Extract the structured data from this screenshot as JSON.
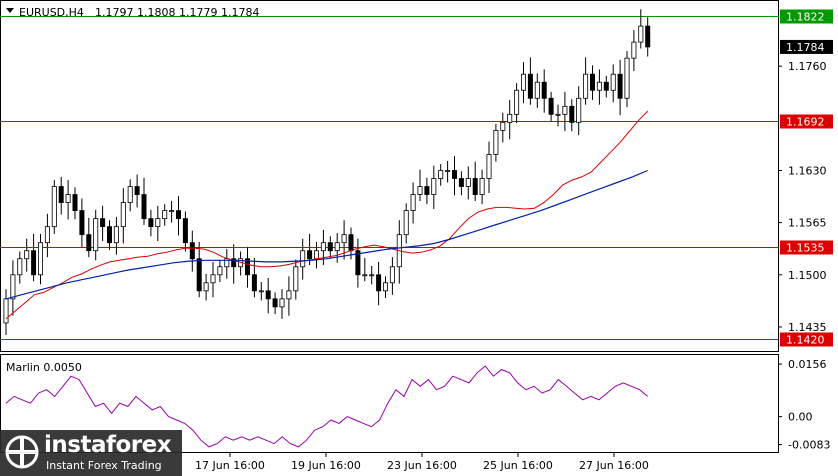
{
  "header": {
    "symbol": "EURUSD,H4",
    "ohlc": "1.1797 1.1808 1.1779 1.1784"
  },
  "indicator": {
    "label": "Marlin 0.0050"
  },
  "watermark": {
    "brand": "instaforex",
    "tagline": "Instant Forex Trading"
  },
  "colors": {
    "bull": "#ffffff",
    "bear": "#000000",
    "ma_red": "#dd0000",
    "ma_blue": "#0022aa",
    "osc": "#9900aa",
    "level_red": "#dd0000",
    "level_green": "#009900"
  },
  "chart_data": [
    {
      "type": "candlestick",
      "title": "EURUSD,H4",
      "ylim": [
        1.1405,
        1.184
      ],
      "x_tick_labels": [
        "17 Jun 16:00",
        "19 Jun 16:00",
        "23 Jun 16:00",
        "25 Jun 16:00",
        "27 Jun 16:00"
      ],
      "y_tick_labels": [
        "1.1760",
        "1.1630",
        "1.1565",
        "1.1500",
        "1.1435"
      ],
      "current_price": "1.1784",
      "levels": [
        {
          "value": 1.1822,
          "label": "1.1822",
          "color": "green"
        },
        {
          "value": 1.1692,
          "label": "1.1692",
          "color": "red"
        },
        {
          "value": 1.1535,
          "label": "1.1535",
          "color": "red"
        },
        {
          "value": 1.142,
          "label": "1.1420",
          "color": "red"
        }
      ],
      "close": [
        1.147,
        1.15,
        1.152,
        1.153,
        1.15,
        1.154,
        1.156,
        1.161,
        1.159,
        1.16,
        1.158,
        1.155,
        1.153,
        1.157,
        1.156,
        1.154,
        1.156,
        1.159,
        1.161,
        1.16,
        1.157,
        1.156,
        1.157,
        1.158,
        1.158,
        1.157,
        1.154,
        1.152,
        1.148,
        1.149,
        1.15,
        1.151,
        1.152,
        1.151,
        1.152,
        1.15,
        1.148,
        1.148,
        1.147,
        1.146,
        1.147,
        1.148,
        1.151,
        1.153,
        1.152,
        1.153,
        1.154,
        1.153,
        1.154,
        1.155,
        1.153,
        1.15,
        1.15,
        1.15,
        1.148,
        1.149,
        1.151,
        1.155,
        1.158,
        1.16,
        1.161,
        1.16,
        1.162,
        1.163,
        1.163,
        1.162,
        1.161,
        1.162,
        1.16,
        1.162,
        1.165,
        1.168,
        1.169,
        1.17,
        1.173,
        1.175,
        1.172,
        1.174,
        1.172,
        1.17,
        1.17,
        1.171,
        1.169,
        1.172,
        1.175,
        1.173,
        1.174,
        1.173,
        1.175,
        1.172,
        1.177,
        1.179,
        1.181,
        1.1784
      ],
      "series": [
        {
          "name": "",
          "role": "ma-fast",
          "values": [
            1.1445,
            1.1455,
            1.1465,
            1.1475,
            1.1478,
            1.1484,
            1.149,
            1.1497,
            1.1501,
            1.1507,
            1.1512,
            1.1516,
            1.1518,
            1.152,
            1.1522,
            1.1523,
            1.1526,
            1.1528,
            1.1531,
            1.1533,
            1.1533,
            1.1532,
            1.1528,
            1.1522,
            1.1518,
            1.1515,
            1.1512,
            1.151,
            1.151,
            1.1511,
            1.1513,
            1.1516,
            1.1518,
            1.152,
            1.1522,
            1.1524,
            1.1528,
            1.1532,
            1.1535,
            1.1537,
            1.1535,
            1.1532,
            1.1529,
            1.1527,
            1.1528,
            1.1531,
            1.1536,
            1.1545,
            1.1558,
            1.157,
            1.1578,
            1.1582,
            1.1584,
            1.1584,
            1.1583,
            1.1582,
            1.1583,
            1.159,
            1.16,
            1.1612,
            1.1618,
            1.1622,
            1.1628,
            1.164,
            1.1652,
            1.1664,
            1.1678,
            1.1692,
            1.1704
          ]
        },
        {
          "name": "",
          "role": "ma-slow",
          "values": [
            1.147,
            1.1475,
            1.148,
            1.1485,
            1.149,
            1.1494,
            1.1498,
            1.1502,
            1.1506,
            1.1509,
            1.1512,
            1.1515,
            1.1517,
            1.1518,
            1.1518,
            1.1518,
            1.1517,
            1.1516,
            1.1516,
            1.1517,
            1.1518,
            1.152,
            1.1523,
            1.1526,
            1.1529,
            1.1532,
            1.1534,
            1.1536,
            1.1539,
            1.1544,
            1.155,
            1.1556,
            1.1562,
            1.1568,
            1.1574,
            1.158,
            1.1587,
            1.1594,
            1.1601,
            1.1608,
            1.1615,
            1.1622,
            1.163
          ]
        }
      ]
    },
    {
      "type": "line",
      "title": "Marlin 0.0050",
      "ylim": [
        -0.0105,
        0.018
      ],
      "y_tick_labels": [
        "0.0156",
        "0.00",
        "-0.0083"
      ],
      "series": [
        {
          "name": "",
          "values": [
            0.004,
            0.006,
            0.005,
            0.004,
            0.007,
            0.008,
            0.006,
            0.009,
            0.012,
            0.011,
            0.007,
            0.003,
            0.004,
            0.001,
            0.004,
            0.003,
            0.006,
            0.004,
            0.002,
            0.003,
            0.0,
            -0.001,
            -0.002,
            -0.004,
            -0.007,
            -0.009,
            -0.008,
            -0.006,
            -0.007,
            -0.006,
            -0.007,
            -0.006,
            -0.007,
            -0.008,
            -0.006,
            -0.008,
            -0.009,
            -0.007,
            -0.004,
            -0.003,
            -0.001,
            -0.002,
            0.0,
            -0.001,
            -0.002,
            -0.003,
            -0.001,
            0.004,
            0.008,
            0.006,
            0.011,
            0.009,
            0.011,
            0.008,
            0.009,
            0.012,
            0.011,
            0.01,
            0.013,
            0.015,
            0.012,
            0.014,
            0.013,
            0.01,
            0.008,
            0.009,
            0.007,
            0.008,
            0.011,
            0.009,
            0.007,
            0.005,
            0.006,
            0.005,
            0.007,
            0.009,
            0.01,
            0.009,
            0.008,
            0.006
          ]
        }
      ]
    }
  ]
}
